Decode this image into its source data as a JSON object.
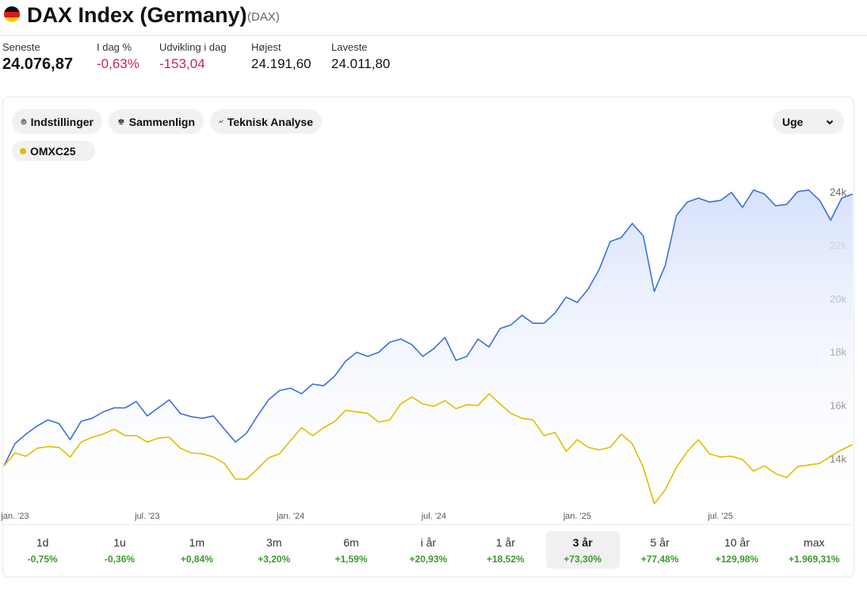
{
  "header": {
    "title": "DAX Index (Germany)",
    "ticker": "(DAX)"
  },
  "stats": [
    {
      "label": "Seneste",
      "value": "24.076,87"
    },
    {
      "label": "I dag %",
      "value": "-0,63%"
    },
    {
      "label": "Udvikling i dag",
      "value": "-153,04"
    },
    {
      "label": "Højest",
      "value": "24.191,60"
    },
    {
      "label": "Laveste",
      "value": "24.011,80"
    }
  ],
  "toolbar": {
    "settings": "Indstillinger",
    "compare": "Sammenlign",
    "technical": "Teknisk Analyse",
    "interval": "Uge"
  },
  "chart_data": {
    "type": "line",
    "categories": [
      null,
      "jan. '23",
      null,
      null,
      null,
      null,
      null,
      null,
      null,
      null,
      null,
      null,
      null,
      "jul. '23",
      null,
      null,
      null,
      null,
      null,
      null,
      null,
      null,
      null,
      null,
      null,
      null,
      "jan. '24",
      null,
      null,
      null,
      null,
      null,
      null,
      null,
      null,
      null,
      null,
      null,
      null,
      "jul. '24",
      null,
      null,
      null,
      null,
      null,
      null,
      null,
      null,
      null,
      null,
      null,
      null,
      "jan. '25",
      null,
      null,
      null,
      null,
      null,
      null,
      null,
      null,
      null,
      null,
      null,
      null,
      "jul. '25",
      null,
      null,
      null,
      null,
      null,
      null,
      null,
      null,
      null,
      null,
      null,
      null
    ],
    "series": [
      {
        "color": "#3b6fe0",
        "area": true,
        "values": [
          13730,
          14560,
          14920,
          15220,
          15450,
          15310,
          14710,
          15400,
          15510,
          15750,
          15900,
          15900,
          16140,
          15600,
          15900,
          16200,
          15690,
          15570,
          15510,
          15600,
          15100,
          14620,
          14950,
          15600,
          16200,
          16550,
          16640,
          16430,
          16790,
          16730,
          17090,
          17650,
          17980,
          17830,
          17980,
          18360,
          18480,
          18270,
          17830,
          18120,
          18540,
          17680,
          17830,
          18480,
          18180,
          18870,
          19010,
          19370,
          19070,
          19070,
          19460,
          20050,
          19850,
          20350,
          21090,
          22130,
          22280,
          22810,
          22340,
          20260,
          21240,
          23110,
          23610,
          23760,
          23610,
          23670,
          23970,
          23410,
          24060,
          23910,
          23470,
          23520,
          24000,
          24060,
          23670,
          22930,
          23760,
          23910
        ]
      },
      {
        "name": "OMXC25",
        "color": "#e2bd00",
        "values": [
          13730,
          14210,
          14090,
          14390,
          14450,
          14420,
          14060,
          14620,
          14800,
          14920,
          15100,
          14860,
          14860,
          14620,
          14770,
          14800,
          14390,
          14210,
          14180,
          14060,
          13820,
          13230,
          13230,
          13610,
          14030,
          14180,
          14680,
          15160,
          14860,
          15160,
          15390,
          15810,
          15750,
          15690,
          15370,
          15450,
          16050,
          16310,
          16050,
          15960,
          16170,
          15870,
          16020,
          15990,
          16430,
          16050,
          15690,
          15510,
          15450,
          14860,
          14980,
          14270,
          14710,
          14420,
          14330,
          14420,
          14920,
          14560,
          13670,
          12310,
          12840,
          13670,
          14270,
          14710,
          14180,
          14060,
          14090,
          13970,
          13530,
          13730,
          13440,
          13290,
          13700,
          13760,
          13820,
          14090,
          14330,
          14530
        ]
      }
    ],
    "ylim": [
      11600,
      24800
    ],
    "yticks": [
      {
        "value": 14000,
        "label": "14k"
      },
      {
        "value": 16000,
        "label": "16k"
      },
      {
        "value": 18000,
        "label": "18k"
      },
      {
        "value": 20000,
        "label": "20k"
      },
      {
        "value": 22000,
        "label": "22k"
      },
      {
        "value": 24000,
        "label": "24k"
      }
    ],
    "grid": false
  },
  "periods": {
    "selected": 7,
    "items": [
      {
        "label": "1d",
        "change": "-0,75%"
      },
      {
        "label": "1u",
        "change": "-0,36%"
      },
      {
        "label": "1m",
        "change": "+0,84%"
      },
      {
        "label": "3m",
        "change": "+3,20%"
      },
      {
        "label": "6m",
        "change": "+1,59%"
      },
      {
        "label": "i år",
        "change": "+20,93%"
      },
      {
        "label": "1 år",
        "change": "+18,52%"
      },
      {
        "label": "3 år",
        "change": "+73,30%"
      },
      {
        "label": "5 år",
        "change": "+77,48%"
      },
      {
        "label": "10 år",
        "change": "+129,98%"
      },
      {
        "label": "max",
        "change": "+1.969,31%"
      }
    ]
  }
}
